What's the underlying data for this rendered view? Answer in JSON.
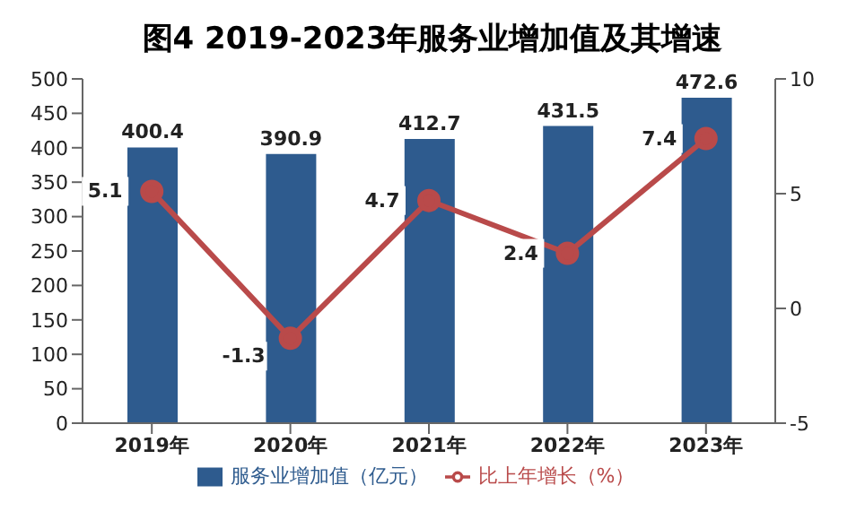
{
  "chart_data": {
    "type": "bar",
    "title": "图4   2019-2023年服务业增加值及其增速",
    "categories": [
      "2019年",
      "2020年",
      "2021年",
      "2022年",
      "2023年"
    ],
    "series": [
      {
        "name": "服务业增加值（亿元）",
        "color": "#2e5b8e",
        "values": [
          400.4,
          390.9,
          412.7,
          431.5,
          472.6
        ]
      },
      {
        "name": "比上年增长（%）",
        "type": "line",
        "axis": "y2",
        "color": "#b94a4a",
        "values": [
          5.1,
          -1.3,
          4.7,
          2.4,
          7.4
        ]
      }
    ],
    "ylim": [
      0,
      500
    ],
    "yticks": [
      0,
      50,
      100,
      150,
      200,
      250,
      300,
      350,
      400,
      450,
      500
    ],
    "y2lim": [
      -5,
      10
    ],
    "y2ticks": [
      -5,
      0,
      5,
      10
    ],
    "data_labels": true,
    "legend": "bottom",
    "marker": "circle",
    "grid": false
  }
}
